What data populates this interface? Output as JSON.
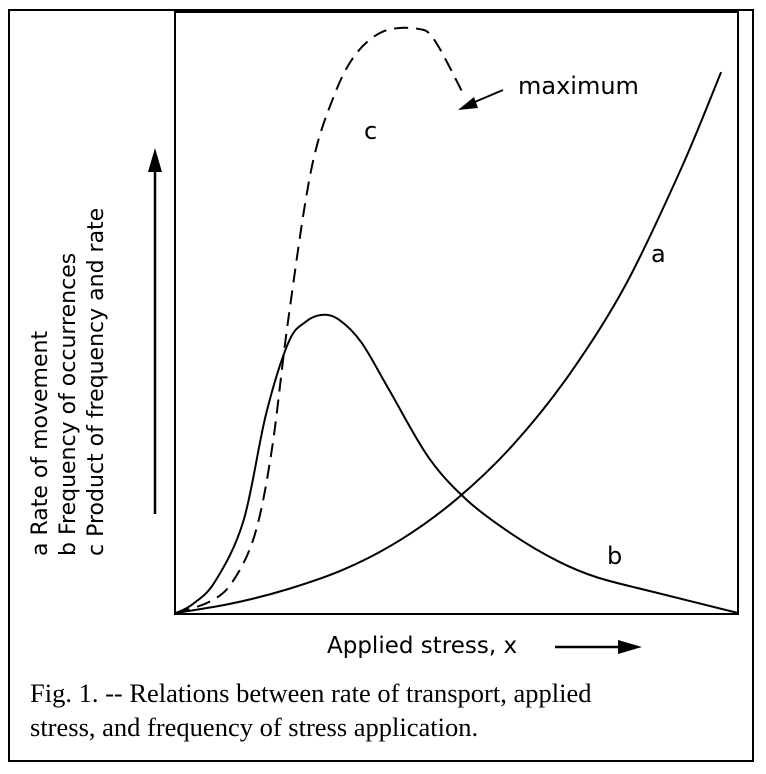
{
  "chart_data": {
    "type": "line",
    "title": "",
    "xlabel": "Applied stress, x",
    "ylabel_lines": [
      "a Rate of movement",
      "b Frequency of occurrences",
      "c Product of frequency and rate"
    ],
    "xlim": [
      0,
      100
    ],
    "ylim": [
      0,
      100
    ],
    "grid": false,
    "legend": "none",
    "series": [
      {
        "name": "a",
        "style": "solid",
        "points": [
          [
            0,
            0
          ],
          [
            10,
            1.6
          ],
          [
            20,
            4.0
          ],
          [
            30,
            7.3
          ],
          [
            40,
            12.2
          ],
          [
            50,
            19.0
          ],
          [
            60,
            28.0
          ],
          [
            70,
            39.7
          ],
          [
            80,
            54.6
          ],
          [
            90,
            74.2
          ],
          [
            97,
            90.0
          ]
        ]
      },
      {
        "name": "b",
        "style": "solid",
        "points": [
          [
            0,
            0
          ],
          [
            3,
            1.5
          ],
          [
            7,
            5.3
          ],
          [
            12,
            15.3
          ],
          [
            16,
            33.0
          ],
          [
            20,
            45.0
          ],
          [
            23,
            48.4
          ],
          [
            26,
            49.6
          ],
          [
            29,
            48.8
          ],
          [
            33,
            45.0
          ],
          [
            38,
            37.0
          ],
          [
            45,
            25.8
          ],
          [
            52,
            18.6
          ],
          [
            60,
            13.0
          ],
          [
            68,
            8.6
          ],
          [
            75,
            5.9
          ],
          [
            85,
            3.5
          ],
          [
            100,
            0
          ]
        ]
      },
      {
        "name": "c",
        "style": "dashed",
        "points": [
          [
            0,
            0
          ],
          [
            6,
            1.9
          ],
          [
            10,
            5.1
          ],
          [
            14,
            13.0
          ],
          [
            17,
            26.8
          ],
          [
            20,
            49.0
          ],
          [
            24,
            73.5
          ],
          [
            28,
            85.8
          ],
          [
            32,
            93.0
          ],
          [
            37,
            96.8
          ],
          [
            43,
            97.2
          ],
          [
            46,
            95.3
          ],
          [
            51,
            86.6
          ]
        ]
      }
    ],
    "annotations": [
      {
        "text": "maximum",
        "arrow_to": [
          44.9,
          97.5
        ]
      },
      {
        "text": "a",
        "series": "a"
      },
      {
        "text": "b",
        "series": "b"
      },
      {
        "text": "c",
        "series": "c"
      }
    ]
  },
  "caption": {
    "line1": "Fig. 1. -- Relations between rate of transport, applied",
    "line2": "stress, and frequency of stress application."
  },
  "colors": {
    "ink": "#000000",
    "background": "#ffffff"
  }
}
